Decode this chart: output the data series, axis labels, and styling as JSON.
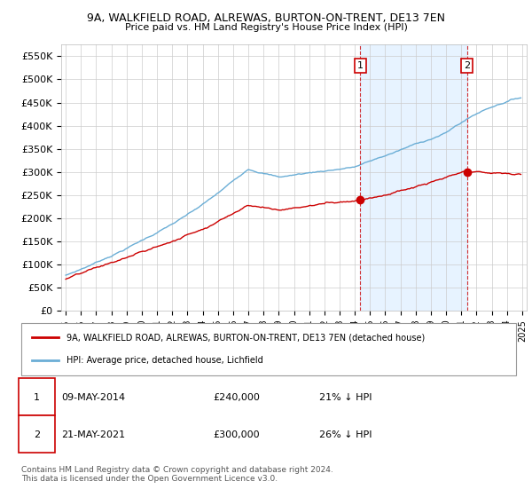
{
  "title": "9A, WALKFIELD ROAD, ALREWAS, BURTON-ON-TRENT, DE13 7EN",
  "subtitle": "Price paid vs. HM Land Registry's House Price Index (HPI)",
  "ylim": [
    0,
    575000
  ],
  "yticks": [
    0,
    50000,
    100000,
    150000,
    200000,
    250000,
    300000,
    350000,
    400000,
    450000,
    500000,
    550000
  ],
  "ytick_labels": [
    "£0",
    "£50K",
    "£100K",
    "£150K",
    "£200K",
    "£250K",
    "£300K",
    "£350K",
    "£400K",
    "£450K",
    "£500K",
    "£550K"
  ],
  "hpi_color": "#6baed6",
  "hpi_fill_color": "#ddeeff",
  "price_color": "#cc0000",
  "marker1_x": 2014.37,
  "marker1_price": 240000,
  "marker1_date": "09-MAY-2014",
  "marker1_pct": "21%",
  "marker2_x": 2021.37,
  "marker2_price": 300000,
  "marker2_date": "21-MAY-2021",
  "marker2_pct": "26%",
  "legend_property": "9A, WALKFIELD ROAD, ALREWAS, BURTON-ON-TRENT, DE13 7EN (detached house)",
  "legend_hpi": "HPI: Average price, detached house, Lichfield",
  "footer": "Contains HM Land Registry data © Crown copyright and database right 2024.\nThis data is licensed under the Open Government Licence v3.0.",
  "background_color": "#ffffff",
  "grid_color": "#cccccc",
  "xstart": 1995,
  "xend": 2025
}
